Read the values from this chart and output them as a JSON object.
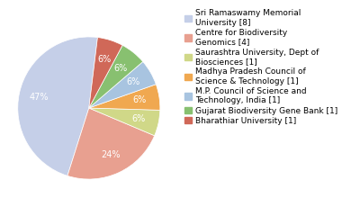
{
  "legend_labels": [
    "Sri Ramaswamy Memorial\nUniversity [8]",
    "Centre for Biodiversity\nGenomics [4]",
    "Saurashtra University, Dept of\nBiosciences [1]",
    "Madhya Pradesh Council of\nScience & Technology [1]",
    "M.P. Council of Science and\nTechnology, India [1]",
    "Gujarat Biodiversity Gene Bank [1]",
    "Bharathiar University [1]"
  ],
  "values": [
    8,
    4,
    1,
    1,
    1,
    1,
    1
  ],
  "colors": [
    "#c5cfe8",
    "#e8a090",
    "#d0d888",
    "#f0a850",
    "#a8c4e0",
    "#88c070",
    "#d06858"
  ],
  "startangle": 83,
  "background_color": "#ffffff",
  "pct_fontsize": 7,
  "legend_fontsize": 6.5
}
